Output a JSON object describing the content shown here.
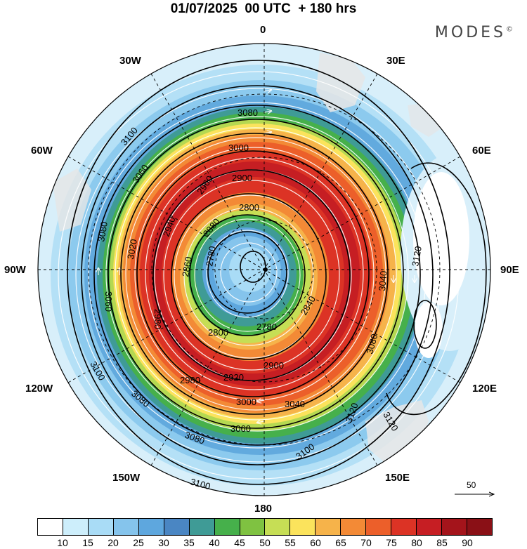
{
  "title": "01/07/2025  00 UTC  + 180 hrs",
  "brand": "MODES",
  "brand_mark": "©",
  "longitude_labels": {
    "lon_0": "0",
    "lon_30e": "30E",
    "lon_60e": "60E",
    "lon_90e": "90E",
    "lon_120e": "120E",
    "lon_150e": "150E",
    "lon_180": "180",
    "lon_150w": "150W",
    "lon_120w": "120W",
    "lon_90w": "90W",
    "lon_60w": "60W",
    "lon_30w": "30W"
  },
  "contour_labels": {
    "c2780": "2780",
    "c2800": "2800",
    "c2840": "2840",
    "c2860": "2860",
    "c2880": "2880",
    "c2900": "2900",
    "c2920": "2920",
    "c2940": "2940",
    "c2960": "2960",
    "c2980": "2980",
    "c3000": "3000",
    "c3020": "3020",
    "c3040": "3040",
    "c3060": "3060",
    "c3080": "3080",
    "c3100": "3100",
    "c3120": "3120"
  },
  "wind_reference": {
    "value": "50"
  },
  "colorbar": {
    "colors": [
      "#ffffff",
      "#cdeefb",
      "#a9dcf6",
      "#85c4ec",
      "#5ea7de",
      "#4a86c3",
      "#3f9b96",
      "#46b04b",
      "#7fc241",
      "#c6de55",
      "#fbe35c",
      "#f6b34a",
      "#f38a36",
      "#ec5f2a",
      "#dc3325",
      "#c61e23",
      "#a4141b",
      "#8a1016"
    ],
    "labels": [
      "10",
      "15",
      "20",
      "25",
      "30",
      "35",
      "40",
      "45",
      "50",
      "55",
      "60",
      "65",
      "70",
      "75",
      "80",
      "85",
      "90"
    ]
  }
}
